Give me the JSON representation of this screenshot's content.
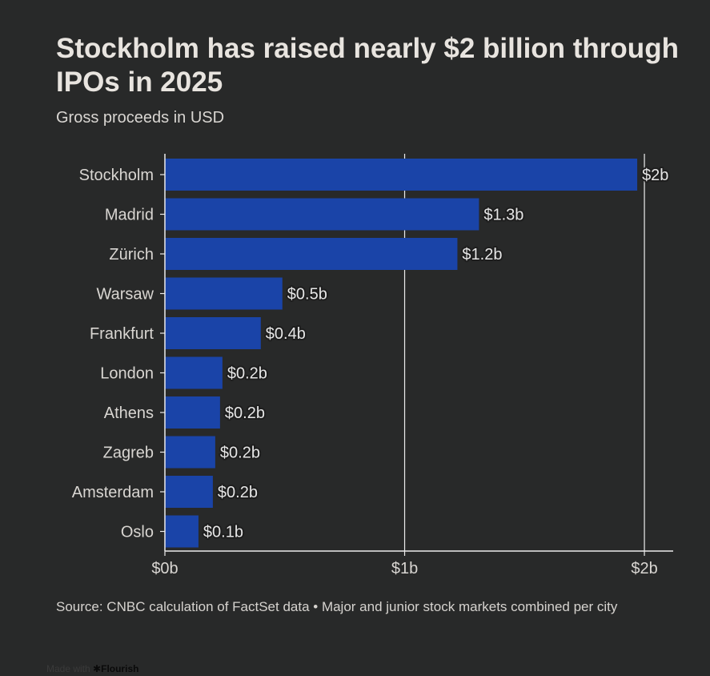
{
  "chart_data": {
    "type": "bar",
    "orientation": "horizontal",
    "title": "Stockholm has raised nearly $2 billion through IPOs in 2025",
    "subtitle": "Gross proceeds in USD",
    "categories": [
      "Stockholm",
      "Madrid",
      "Zürich",
      "Warsaw",
      "Frankfurt",
      "London",
      "Athens",
      "Zagreb",
      "Amsterdam",
      "Oslo"
    ],
    "values": [
      1.97,
      1.31,
      1.22,
      0.49,
      0.4,
      0.24,
      0.23,
      0.21,
      0.2,
      0.14
    ],
    "data_labels": [
      "$2b",
      "$1.3b",
      "$1.2b",
      "$0.5b",
      "$0.4b",
      "$0.2b",
      "$0.2b",
      "$0.2b",
      "$0.2b",
      "$0.1b"
    ],
    "xlim": [
      0,
      2.12
    ],
    "x_ticks": [
      0,
      1,
      2
    ],
    "x_tick_labels": [
      "$0b",
      "$1b",
      "$2b"
    ],
    "xlabel": "",
    "ylabel": "",
    "grid": true,
    "bar_color": "#1a44a8"
  },
  "source": "Source: CNBC calculation of FactSet data • Major and junior stock markets combined per city",
  "credit": {
    "prefix": "Made with",
    "brand": "Flourish"
  }
}
